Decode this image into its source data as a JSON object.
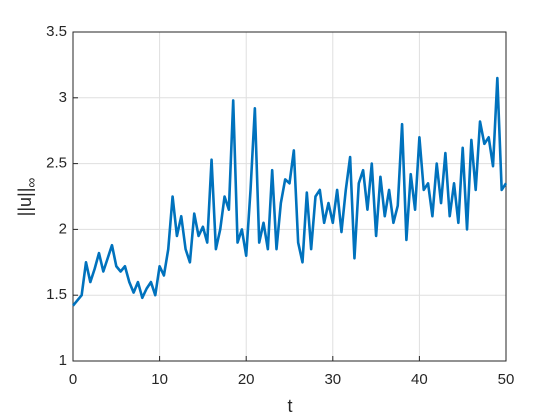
{
  "chart_data": {
    "type": "line",
    "xlabel": "t",
    "ylabel": {
      "text": "||u||",
      "subscript": "∞"
    },
    "x": [
      0,
      0.5,
      1,
      1.5,
      2,
      2.5,
      3,
      3.5,
      4,
      4.5,
      5,
      5.5,
      6,
      6.5,
      7,
      7.5,
      8,
      8.5,
      9,
      9.5,
      10,
      10.5,
      11,
      11.5,
      12,
      12.5,
      13,
      13.5,
      14,
      14.5,
      15,
      15.5,
      16,
      16.5,
      17,
      17.5,
      18,
      18.5,
      19,
      19.5,
      20,
      20.5,
      21,
      21.5,
      22,
      22.5,
      23,
      23.5,
      24,
      24.5,
      25,
      25.5,
      26,
      26.5,
      27,
      27.5,
      28,
      28.5,
      29,
      29.5,
      30,
      30.5,
      31,
      31.5,
      32,
      32.5,
      33,
      33.5,
      34,
      34.5,
      35,
      35.5,
      36,
      36.5,
      37,
      37.5,
      38,
      38.5,
      39,
      39.5,
      40,
      40.5,
      41,
      41.5,
      42,
      42.5,
      43,
      43.5,
      44,
      44.5,
      45,
      45.5,
      46,
      46.5,
      47,
      47.5,
      48,
      48.5,
      49,
      49.5,
      50
    ],
    "series": [
      {
        "color": "#0072BD",
        "values": [
          1.42,
          1.46,
          1.5,
          1.75,
          1.6,
          1.7,
          1.82,
          1.68,
          1.78,
          1.88,
          1.72,
          1.68,
          1.72,
          1.6,
          1.52,
          1.6,
          1.48,
          1.55,
          1.6,
          1.5,
          1.72,
          1.65,
          1.85,
          2.25,
          1.95,
          2.1,
          1.85,
          1.75,
          2.12,
          1.95,
          2.02,
          1.9,
          2.53,
          1.85,
          2.0,
          2.25,
          2.15,
          2.98,
          1.9,
          2.0,
          1.8,
          2.3,
          2.92,
          1.9,
          2.05,
          1.85,
          2.45,
          1.85,
          2.2,
          2.38,
          2.35,
          2.6,
          1.9,
          1.75,
          2.28,
          1.85,
          2.25,
          2.3,
          2.05,
          2.2,
          2.05,
          2.3,
          1.98,
          2.3,
          2.55,
          1.78,
          2.35,
          2.45,
          2.15,
          2.5,
          1.95,
          2.4,
          2.1,
          2.3,
          2.05,
          2.18,
          2.8,
          1.92,
          2.42,
          2.15,
          2.7,
          2.3,
          2.35,
          2.1,
          2.5,
          2.2,
          2.58,
          2.1,
          2.35,
          2.05,
          2.62,
          2.0,
          2.68,
          2.3,
          2.82,
          2.65,
          2.7,
          2.48,
          3.15,
          2.3,
          2.35
        ]
      }
    ],
    "xlim": [
      0,
      50
    ],
    "xticks": [
      0,
      10,
      20,
      30,
      40,
      50
    ],
    "ylim": [
      1,
      3.5
    ],
    "yticks": [
      1,
      1.5,
      2,
      2.5,
      3,
      3.5
    ],
    "grid": true
  }
}
